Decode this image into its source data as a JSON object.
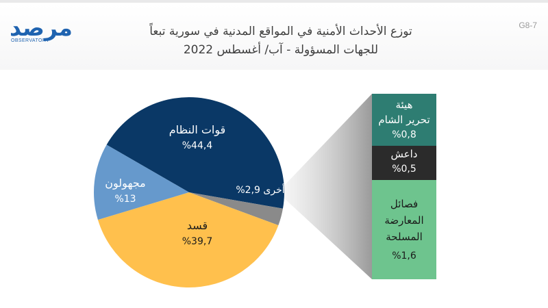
{
  "figure_code": "G8-7",
  "logo": {
    "arabic": "مرصد",
    "english": "OBSERVATORY"
  },
  "title_line1": "توزع الأحداث الأمنية في المواقع المدنية في سورية تبعاً",
  "title_line2": "للجهات المسؤولة - آب/ أغسطس 2022",
  "colors": {
    "regime": "#0a3866",
    "sdf": "#ffc04d",
    "unknown": "#6699cc",
    "other": "#8a8a8a",
    "hts": "#2e7d72",
    "isis": "#2b2b2b",
    "opposition": "#6ec48e"
  },
  "chart_data": [
    {
      "type": "pie",
      "title": "توزع الأحداث الأمنية في المواقع المدنية في سورية تبعاً للجهات المسؤولة - آب/ أغسطس 2022",
      "unit": "%",
      "slices": [
        {
          "key": "regime",
          "label": "قوات النظام",
          "value": 44.4,
          "value_text": "%44,4"
        },
        {
          "key": "other",
          "label": "أخرى",
          "value": 2.9,
          "value_text": "2,9%"
        },
        {
          "key": "sdf",
          "label": "قسد",
          "value": 39.7,
          "value_text": "%39,7"
        },
        {
          "key": "unknown",
          "label": "مجهولون",
          "value": 13,
          "value_text": "%13"
        }
      ]
    },
    {
      "type": "bar",
      "stacked": true,
      "note": "breakdown of أخرى",
      "segments": [
        {
          "key": "hts",
          "label": "هيئة تحرير الشام",
          "value": 0.8,
          "value_text": "%0,8"
        },
        {
          "key": "isis",
          "label": "داعش",
          "value": 0.5,
          "value_text": "%0,5"
        },
        {
          "key": "opposition",
          "label": "فصائل المعارضة المسلحة",
          "value": 1.6,
          "value_text": "%1,6"
        }
      ]
    }
  ],
  "labels": {
    "regime": {
      "name": "قوات النظام",
      "value": "%44,4"
    },
    "sdf": {
      "name": "قسد",
      "value": "%39,7"
    },
    "unknown": {
      "name": "مجهولون",
      "value": "%13"
    },
    "other": {
      "text": "أخرى 2,9%"
    },
    "hts": {
      "line1": "هيئة",
      "line2": "تحرير الشام",
      "value": "%0,8"
    },
    "isis": {
      "name": "داعش",
      "value": "%0,5"
    },
    "opposition": {
      "line1": "فصائل",
      "line2": "المعارضة",
      "line3": "المسلحة",
      "value": "%1,6"
    }
  }
}
